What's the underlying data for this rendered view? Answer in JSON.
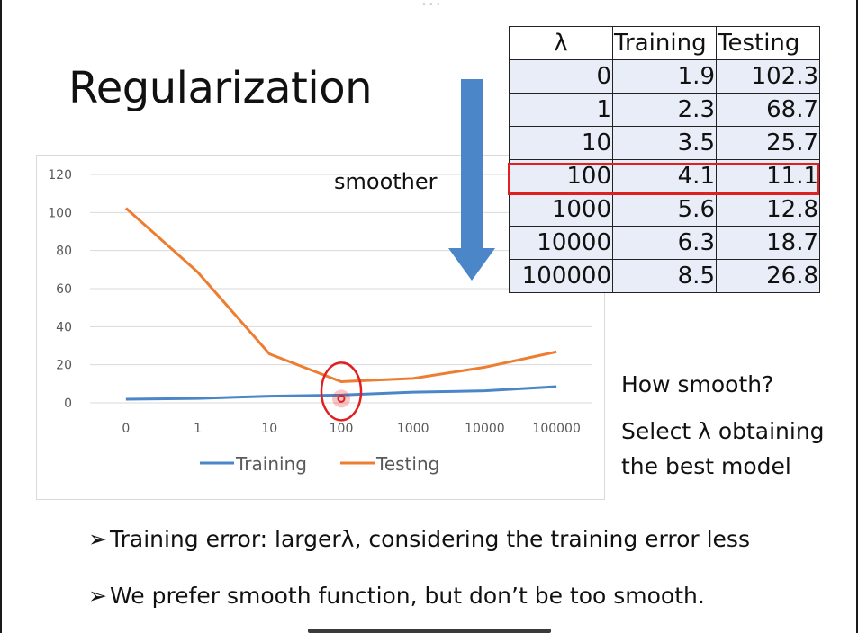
{
  "title": "Regularization",
  "smoother_label": "smoother",
  "table": {
    "headers": [
      "λ",
      "Training",
      "Testing"
    ],
    "rows": [
      [
        "0",
        "1.9",
        "102.3"
      ],
      [
        "1",
        "2.3",
        "68.7"
      ],
      [
        "10",
        "3.5",
        "25.7"
      ],
      [
        "100",
        "4.1",
        "11.1"
      ],
      [
        "1000",
        "5.6",
        "12.8"
      ],
      [
        "10000",
        "6.3",
        "18.7"
      ],
      [
        "100000",
        "8.5",
        "26.8"
      ]
    ],
    "highlighted_row": 3,
    "highlight_color": "#e02020"
  },
  "side_notes": {
    "question": "How smooth?",
    "line1": "Select λ obtaining",
    "line2": "the best model"
  },
  "bullets": [
    "Training error: largerλ, considering the training error less",
    "We prefer smooth function, but don’t be too smooth."
  ],
  "bullet_symbol": "➢",
  "chart_data": {
    "type": "line",
    "categories": [
      "0",
      "1",
      "10",
      "100",
      "1000",
      "10000",
      "100000"
    ],
    "series": [
      {
        "name": "Training",
        "values": [
          1.9,
          2.3,
          3.5,
          4.1,
          5.6,
          6.3,
          8.5
        ],
        "color": "#4a86c8"
      },
      {
        "name": "Testing",
        "values": [
          102.3,
          68.7,
          25.7,
          11.1,
          12.8,
          18.7,
          26.8
        ],
        "color": "#ed7d31"
      }
    ],
    "yticks": [
      0,
      20,
      40,
      60,
      80,
      100,
      120
    ],
    "ylim": [
      0,
      120
    ],
    "grid": true,
    "legend_placement": "bottom",
    "annotation": {
      "type": "circle",
      "category": "100",
      "color": "#e02020"
    }
  },
  "colors": {
    "arrow": "#4a86c8",
    "table_cell_bg": "#e8edf7"
  }
}
